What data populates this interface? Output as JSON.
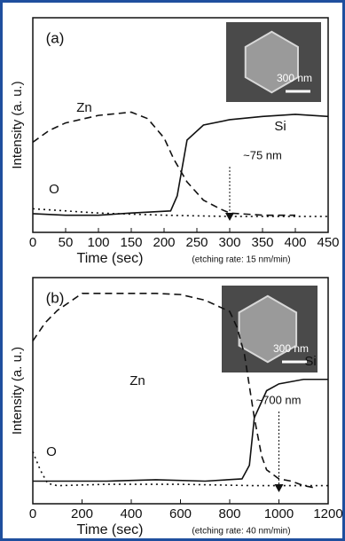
{
  "chart_data": [
    {
      "type": "line",
      "panel_label": "(a)",
      "x_label": "Time (sec)",
      "note": "(etching rate: 15 nm/min)",
      "y_label": "Intensity (a. u.)",
      "xlim": [
        0,
        450
      ],
      "xticks": [
        0,
        50,
        100,
        150,
        200,
        250,
        300,
        350,
        400,
        450
      ],
      "ylim": [
        0,
        100
      ],
      "inset_scale": "300 nm",
      "annotation": {
        "text": "~75 nm",
        "x": 300
      },
      "series": [
        {
          "name": "Zn",
          "color": "#111111",
          "style": "dashed",
          "x": [
            0,
            25,
            50,
            100,
            150,
            175,
            200,
            215,
            235,
            260,
            285,
            300,
            350,
            400
          ],
          "values": [
            42,
            47.5,
            51,
            54.5,
            56,
            53,
            44,
            34,
            23.5,
            15,
            11,
            9,
            8,
            8
          ]
        },
        {
          "name": "Si",
          "color": "#111111",
          "style": "solid",
          "x": [
            0,
            50,
            100,
            150,
            210,
            220,
            235,
            260,
            300,
            350,
            400,
            450
          ],
          "values": [
            8.7,
            8,
            8,
            9,
            10,
            17,
            43,
            50,
            52.5,
            54,
            55,
            54
          ]
        },
        {
          "name": "O",
          "color": "#111111",
          "style": "dotted",
          "x": [
            0,
            100,
            200,
            300,
            450
          ],
          "values": [
            11,
            9,
            8,
            7.4,
            7.4
          ]
        }
      ]
    },
    {
      "type": "line",
      "panel_label": "(b)",
      "x_label": "Time (sec)",
      "note": "(etching rate: 40 nm/min)",
      "y_label": "Intensity (a. u.)",
      "xlim": [
        0,
        1200
      ],
      "xticks": [
        0,
        200,
        400,
        600,
        800,
        1000,
        1200
      ],
      "ylim": [
        0,
        100
      ],
      "inset_scale": "300 nm",
      "annotation": {
        "text": "~700 nm",
        "x": 1000
      },
      "series": [
        {
          "name": "Zn",
          "color": "#111111",
          "style": "dashed",
          "x": [
            0,
            50,
            100,
            200,
            300,
            400,
            500,
            600,
            700,
            750,
            800,
            830,
            860,
            900,
            930,
            950,
            1000,
            1050,
            1100,
            1150
          ],
          "values": [
            72,
            80,
            85.5,
            93,
            93,
            93,
            93,
            92.5,
            90,
            87.5,
            85,
            78,
            66,
            38,
            21,
            15,
            11,
            10,
            8,
            7
          ]
        },
        {
          "name": "Si",
          "color": "#111111",
          "style": "solid",
          "x": [
            0,
            100,
            300,
            500,
            700,
            850,
            880,
            900,
            950,
            1000,
            1100,
            1200
          ],
          "values": [
            10,
            10,
            10,
            10.6,
            10,
            11,
            17,
            38,
            50,
            53,
            55,
            55
          ]
        },
        {
          "name": "O",
          "color": "#111111",
          "style": "dotted",
          "x": [
            0,
            30,
            60,
            100,
            300,
            600,
            900,
            1200
          ],
          "values": [
            23,
            15,
            9,
            8,
            8.6,
            8.6,
            8,
            8
          ]
        }
      ]
    }
  ]
}
